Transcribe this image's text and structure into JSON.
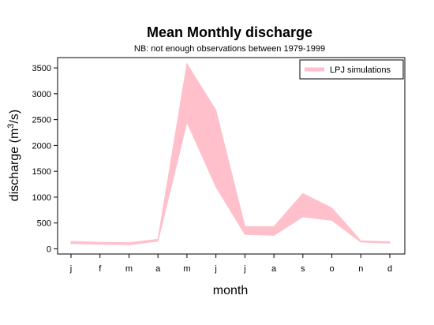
{
  "chart_data": {
    "type": "area",
    "title": "Mean Monthly discharge",
    "subtitle": "NB: not enough observations between 1979-1999",
    "xlabel": "month",
    "ylabel": "discharge (m",
    "ylabel_superscript": "3",
    "ylabel_suffix": "/s)",
    "categories": [
      "j",
      "f",
      "m",
      "a",
      "m",
      "j",
      "j",
      "a",
      "s",
      "o",
      "n",
      "d"
    ],
    "yticks": [
      0,
      500,
      1000,
      1500,
      2000,
      2500,
      3000,
      3500
    ],
    "ylim": [
      -100,
      3700
    ],
    "grid": false,
    "legend_position": "top-right",
    "series": [
      {
        "name": "LPJ simulations",
        "color": "#FFC0CB",
        "lower": [
          100,
          90,
          80,
          150,
          2450,
          1200,
          280,
          260,
          620,
          550,
          130,
          110
        ],
        "upper": [
          145,
          125,
          120,
          185,
          3580,
          2680,
          430,
          430,
          1070,
          790,
          155,
          135
        ]
      }
    ]
  }
}
